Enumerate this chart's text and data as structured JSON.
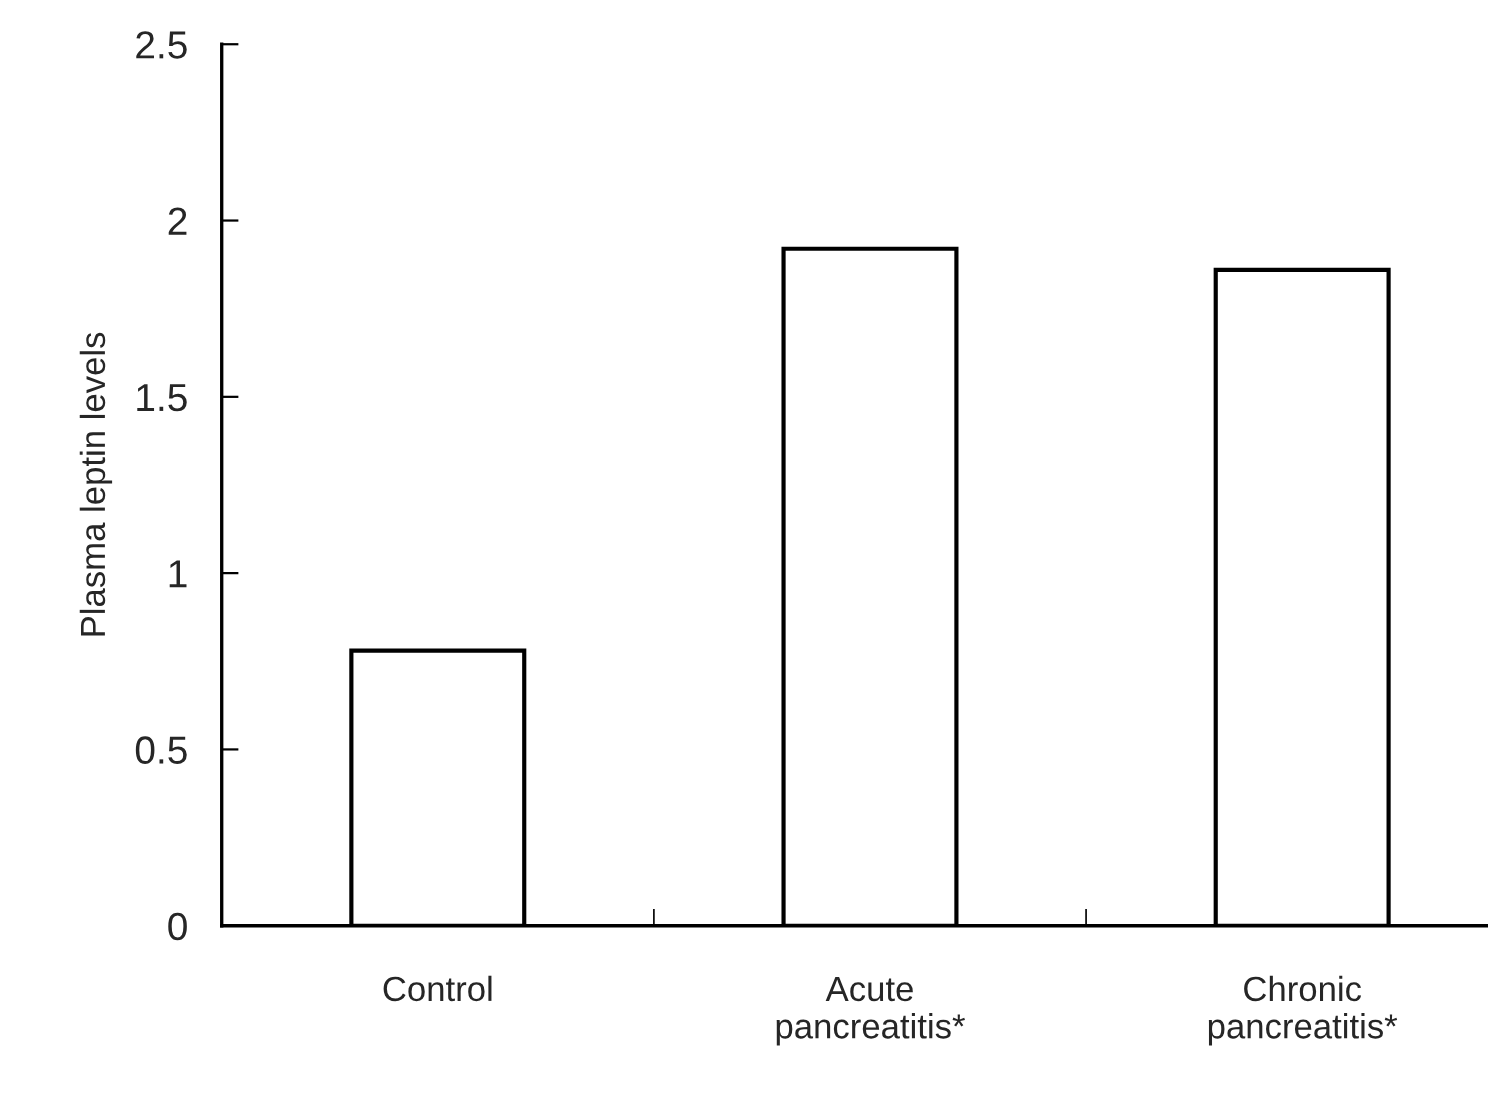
{
  "chart_data": {
    "type": "bar",
    "ylabel": "Plasma leptin levels",
    "categories": [
      "Control",
      "Acute\npancreatitis*",
      "Chronic\npancreatitis*"
    ],
    "values": [
      0.78,
      1.92,
      1.86
    ],
    "color": "#ffffff",
    "ylim": [
      0,
      2.5
    ],
    "yticks": [
      0,
      0.5,
      1,
      1.5,
      2,
      2.5
    ],
    "grid": false,
    "legend": false
  }
}
